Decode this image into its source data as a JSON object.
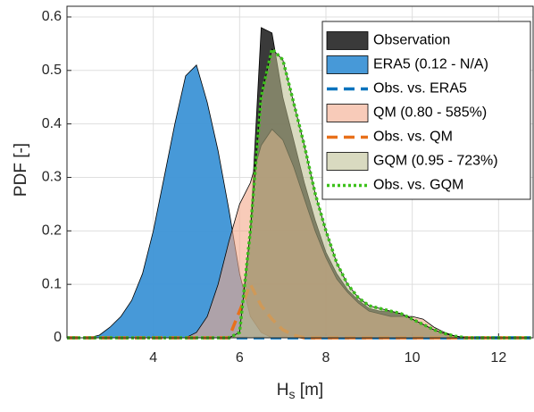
{
  "chart_data": {
    "type": "area",
    "y_label": "PDF [-]",
    "x_label": {
      "main": "H",
      "sub": "s",
      "rest": " [m]"
    },
    "x": [
      2,
      2.25,
      2.5,
      2.75,
      3,
      3.25,
      3.5,
      3.75,
      4,
      4.25,
      4.5,
      4.75,
      5,
      5.25,
      5.5,
      5.75,
      6,
      6.25,
      6.5,
      6.75,
      7,
      7.25,
      7.5,
      7.75,
      8,
      8.25,
      8.5,
      8.75,
      9,
      9.25,
      9.5,
      9.75,
      10,
      10.25,
      10.5,
      10.75,
      11,
      11.25,
      11.5,
      11.75,
      12,
      12.25,
      12.5,
      12.75
    ],
    "series": [
      {
        "name": "Observation",
        "style": "fill",
        "color": "#1f1f1f",
        "alpha": 0.88,
        "values": [
          0,
          0,
          0,
          0,
          0,
          0,
          0,
          0,
          0,
          0,
          0,
          0,
          0,
          0,
          0,
          0,
          0.01,
          0.2,
          0.58,
          0.57,
          0.45,
          0.37,
          0.29,
          0.22,
          0.16,
          0.12,
          0.09,
          0.07,
          0.055,
          0.05,
          0.05,
          0.045,
          0.035,
          0.025,
          0.015,
          0.008,
          0.003,
          0,
          0,
          0,
          0,
          0,
          0,
          0
        ]
      },
      {
        "name": "ERA5 (0.12 - N/A)",
        "style": "fill",
        "color": "#3d94d6",
        "alpha": 0.95,
        "values": [
          0,
          0,
          0,
          0.005,
          0.02,
          0.04,
          0.07,
          0.12,
          0.2,
          0.3,
          0.4,
          0.49,
          0.51,
          0.44,
          0.35,
          0.24,
          0.12,
          0.04,
          0.01,
          0,
          0,
          0,
          0,
          0,
          0,
          0,
          0,
          0,
          0,
          0,
          0,
          0,
          0,
          0,
          0,
          0,
          0,
          0,
          0,
          0,
          0,
          0,
          0,
          0
        ]
      },
      {
        "name": "Obs. vs. ERA5",
        "style": "dashed",
        "color": "#0072bd",
        "values": [
          0,
          0,
          0,
          0,
          0,
          0,
          0,
          0,
          0,
          0,
          0,
          0,
          0,
          0,
          0,
          0,
          0,
          0,
          0,
          0,
          0,
          0,
          0,
          0,
          0,
          0,
          0,
          0,
          0,
          0,
          0,
          0,
          0,
          0,
          0,
          0,
          0,
          0,
          0,
          0,
          0,
          0,
          0,
          0
        ]
      },
      {
        "name": "QM (0.80 - 585%)",
        "style": "fill",
        "color": "#f4a88a",
        "alpha": 0.6,
        "values": [
          0,
          0,
          0,
          0,
          0,
          0,
          0,
          0,
          0,
          0,
          0,
          0,
          0.01,
          0.04,
          0.1,
          0.18,
          0.25,
          0.29,
          0.36,
          0.39,
          0.37,
          0.32,
          0.26,
          0.2,
          0.15,
          0.11,
          0.085,
          0.065,
          0.05,
          0.045,
          0.04,
          0.04,
          0.04,
          0.035,
          0.02,
          0.01,
          0.003,
          0,
          0,
          0,
          0,
          0,
          0,
          0
        ]
      },
      {
        "name": "Obs. vs. QM",
        "style": "dashed",
        "color": "#e8701a",
        "values": [
          0,
          0,
          0,
          0,
          0,
          0,
          0,
          0,
          0,
          0,
          0,
          0,
          0,
          0,
          0,
          0,
          0.05,
          0.1,
          0.06,
          0.035,
          0.015,
          0.005,
          0,
          0,
          0,
          0,
          0,
          0,
          0,
          0,
          0,
          0,
          0,
          0,
          0,
          0,
          0,
          0,
          0,
          0,
          0,
          0,
          0,
          0
        ]
      },
      {
        "name": "GQM (0.95 - 723%)",
        "style": "fill",
        "color": "#b9bb8c",
        "alpha": 0.55,
        "values": [
          0,
          0,
          0,
          0,
          0,
          0,
          0,
          0,
          0,
          0,
          0,
          0,
          0,
          0,
          0,
          0,
          0.01,
          0.2,
          0.45,
          0.54,
          0.52,
          0.44,
          0.36,
          0.27,
          0.2,
          0.14,
          0.1,
          0.075,
          0.06,
          0.055,
          0.05,
          0.045,
          0.035,
          0.025,
          0.015,
          0.008,
          0.003,
          0,
          0,
          0,
          0,
          0,
          0,
          0
        ]
      },
      {
        "name": "Obs. vs. GQM",
        "style": "dotted",
        "color": "#3cc11b",
        "values": [
          0,
          0,
          0,
          0,
          0,
          0,
          0,
          0,
          0,
          0,
          0,
          0,
          0,
          0,
          0,
          0,
          0.01,
          0.2,
          0.45,
          0.54,
          0.52,
          0.44,
          0.36,
          0.27,
          0.2,
          0.14,
          0.1,
          0.075,
          0.06,
          0.055,
          0.05,
          0.045,
          0.035,
          0.025,
          0.015,
          0.008,
          0.003,
          0,
          0,
          0,
          0,
          0,
          0,
          0
        ]
      }
    ],
    "xlim": [
      2,
      12.8
    ],
    "ylim": [
      0,
      0.62
    ],
    "xticks": [
      4,
      6,
      8,
      10,
      12
    ],
    "yticks": [
      0,
      0.1,
      0.2,
      0.3,
      0.4,
      0.5,
      0.6
    ],
    "grid": true,
    "legend": "upper right"
  }
}
